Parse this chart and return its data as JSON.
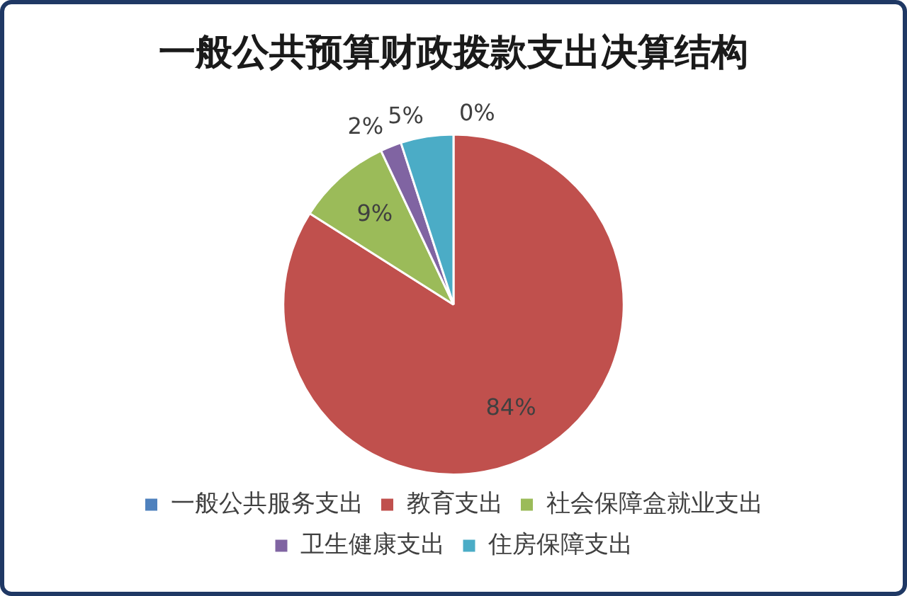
{
  "chart_data": {
    "type": "pie",
    "title": "一般公共预算财政拨款支出决算结构",
    "categories": [
      "一般公共服务支出",
      "教育支出",
      "社会保障盒就业支出",
      "卫生健康支出",
      "住房保障支出"
    ],
    "values": [
      0,
      84,
      9,
      2,
      5
    ],
    "colors": [
      "#4f81bd",
      "#c0504d",
      "#9bbb59",
      "#8064a2",
      "#4bacc6"
    ],
    "value_labels": [
      "0%",
      "84%",
      "9%",
      "2%",
      "5%"
    ],
    "legend": "bottom"
  }
}
